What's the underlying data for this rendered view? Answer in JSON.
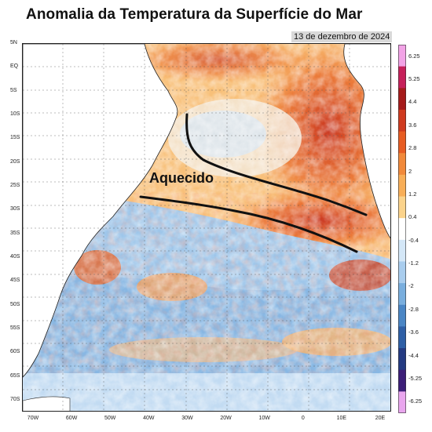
{
  "title": "Anomalia da Temperatura da Superfície do Mar",
  "date": "13 de dezembro de 2024",
  "annotation": "Aquecido",
  "lat_labels": [
    "5N",
    "EQ",
    "5S",
    "10S",
    "15S",
    "20S",
    "25S",
    "30S",
    "35S",
    "40S",
    "45S",
    "50S",
    "55S",
    "60S",
    "65S",
    "70S"
  ],
  "lon_labels": [
    "70W",
    "60W",
    "50W",
    "40W",
    "30W",
    "20W",
    "10W",
    "0",
    "10E",
    "20E"
  ],
  "colorbar": {
    "ticks": [
      "6.25",
      "5.25",
      "4.4",
      "3.6",
      "2.8",
      "2",
      "1.2",
      "0.4",
      "-0.4",
      "-1.2",
      "-2",
      "-2.8",
      "-3.6",
      "-4.4",
      "-5.25",
      "-6.25"
    ],
    "colors": [
      "#f2a3e6",
      "#c6205a",
      "#a51b1b",
      "#cf3a1f",
      "#e75c22",
      "#f1893a",
      "#f8ae57",
      "#fbd38b",
      "#ffffff",
      "#d4e7f7",
      "#a9cdee",
      "#79aede",
      "#4a86c5",
      "#2e5fa6",
      "#243a82",
      "#3c1e78",
      "#e9a6ee"
    ]
  },
  "regions": {
    "warm_label": "Aquecido"
  }
}
